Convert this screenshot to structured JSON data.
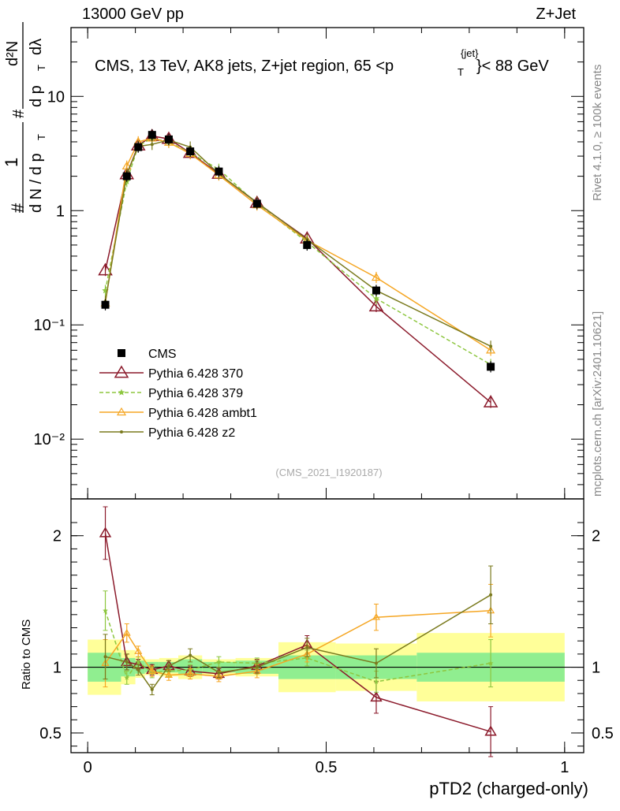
{
  "header": {
    "left": "13000 GeV pp",
    "right": "Z+Jet"
  },
  "side_labels": {
    "rivet": "Rivet 4.1.0, ≥ 100k events",
    "mcplots": "mcplots.cern.ch [arXiv:2401.10621]"
  },
  "chart_data": {
    "type": "line",
    "title": "CMS, 13 TeV, AK8 jets, Z+jet region, 65 <p_T^{jet}< 88 GeV",
    "title_parts": {
      "prefix": "CMS, 13 TeV, AK8 jets, Z+jet region, 65 <p",
      "sup": "{jet}",
      "sub": "T",
      "suffix": "}< 88 GeV"
    },
    "analysis_tag": "(CMS_2021_I1920187)",
    "ylabel_parts": {
      "num_hash": "#",
      "num_one": "1",
      "den": "d N / d p",
      "den_sub": "T",
      "frac_num": "d²N",
      "frac_den": "d p",
      "frac_den_sub": "T",
      "frac_den_tail": "dλ",
      "frac_hash": "#"
    },
    "xlabel": "pTD2 (charged-only)",
    "ratio_ylabel": "Ratio to CMS",
    "x_range": [
      -0.035,
      1.04
    ],
    "y_range_log": [
      0.003,
      40
    ],
    "ratio_range": [
      0.35,
      2.28
    ],
    "x_ticks": [
      "0",
      "0.5",
      "1"
    ],
    "y_ticks": [
      "10⁻²",
      "10⁻¹",
      "1",
      "10"
    ],
    "ratio_ticks": [
      "0.5",
      "1",
      "2"
    ],
    "bins": [
      {
        "lo": 0.0,
        "hi": 0.07
      },
      {
        "lo": 0.07,
        "hi": 0.1
      },
      {
        "lo": 0.1,
        "hi": 0.12
      },
      {
        "lo": 0.12,
        "hi": 0.15
      },
      {
        "lo": 0.15,
        "hi": 0.19
      },
      {
        "lo": 0.19,
        "hi": 0.24
      },
      {
        "lo": 0.24,
        "hi": 0.31
      },
      {
        "lo": 0.31,
        "hi": 0.4
      },
      {
        "lo": 0.4,
        "hi": 0.52
      },
      {
        "lo": 0.52,
        "hi": 0.69
      },
      {
        "lo": 0.69,
        "hi": 1.0
      }
    ],
    "x": [
      0.037,
      0.082,
      0.106,
      0.135,
      0.17,
      0.215,
      0.275,
      0.355,
      0.46,
      0.605,
      0.845
    ],
    "band_stat": [
      0.11,
      0.07,
      0.05,
      0.04,
      0.04,
      0.06,
      0.04,
      0.05,
      0.09,
      0.09,
      0.11
    ],
    "band_total": [
      0.21,
      0.13,
      0.08,
      0.06,
      0.07,
      0.09,
      0.06,
      0.07,
      0.19,
      0.18,
      0.26
    ],
    "series": [
      {
        "name": "CMS",
        "style": "data",
        "color": "#000000",
        "values": [
          0.15,
          2.0,
          3.6,
          4.6,
          4.2,
          3.3,
          2.2,
          1.15,
          0.5,
          0.2,
          0.043
        ]
      },
      {
        "name": "Pythia 6.428 370",
        "style": "triangle",
        "color": "#8b1a2b",
        "values": [
          0.3,
          2.08,
          3.72,
          4.5,
          4.25,
          3.2,
          2.1,
          1.17,
          0.57,
          0.145,
          0.021
        ],
        "ratio": [
          2.02,
          1.04,
          1.02,
          0.98,
          1.01,
          0.97,
          0.95,
          1.01,
          1.17,
          0.77,
          0.51
        ],
        "ratio_err": [
          0.2,
          0.06,
          0.04,
          0.04,
          0.04,
          0.04,
          0.04,
          0.05,
          0.07,
          0.12,
          0.19
        ]
      },
      {
        "name": "Pythia 6.428 379",
        "style": "star",
        "color": "#8dc63f",
        "values": [
          0.2,
          1.8,
          3.7,
          4.3,
          4.0,
          3.2,
          2.3,
          1.15,
          0.53,
          0.17,
          0.045
        ],
        "ratio": [
          1.43,
          0.92,
          1.04,
          0.96,
          0.97,
          0.98,
          1.04,
          1.03,
          1.07,
          0.89,
          1.03
        ],
        "ratio_err": [
          0.15,
          0.05,
          0.04,
          0.04,
          0.04,
          0.04,
          0.04,
          0.04,
          0.06,
          0.08,
          0.18
        ]
      },
      {
        "name": "Pythia 6.428 ambt1",
        "style": "otriangle",
        "color": "#f5a623",
        "values": [
          0.155,
          2.45,
          4.0,
          4.3,
          3.95,
          3.15,
          2.05,
          1.12,
          0.55,
          0.26,
          0.06
        ],
        "ratio": [
          1.03,
          1.26,
          1.12,
          0.97,
          0.94,
          0.95,
          0.93,
          0.97,
          1.1,
          1.38,
          1.43
        ],
        "ratio_err": [
          0.18,
          0.07,
          0.04,
          0.04,
          0.04,
          0.04,
          0.04,
          0.05,
          0.06,
          0.1,
          0.2
        ]
      },
      {
        "name": "Pythia 6.428 z2",
        "style": "dot",
        "color": "#7a7a1e",
        "values": [
          0.16,
          2.08,
          3.65,
          3.8,
          4.15,
          3.6,
          2.1,
          1.18,
          0.56,
          0.2,
          0.065
        ],
        "ratio": [
          1.08,
          1.04,
          0.98,
          0.83,
          1.01,
          1.09,
          0.96,
          1.0,
          1.15,
          1.03,
          1.55
        ],
        "ratio_err": [
          0.17,
          0.06,
          0.04,
          0.04,
          0.04,
          0.05,
          0.04,
          0.05,
          0.07,
          0.11,
          0.22
        ]
      }
    ],
    "colors": {
      "band_stat": "#90ee90",
      "band_total": "#ffff99",
      "unity_line": "#000000"
    }
  }
}
